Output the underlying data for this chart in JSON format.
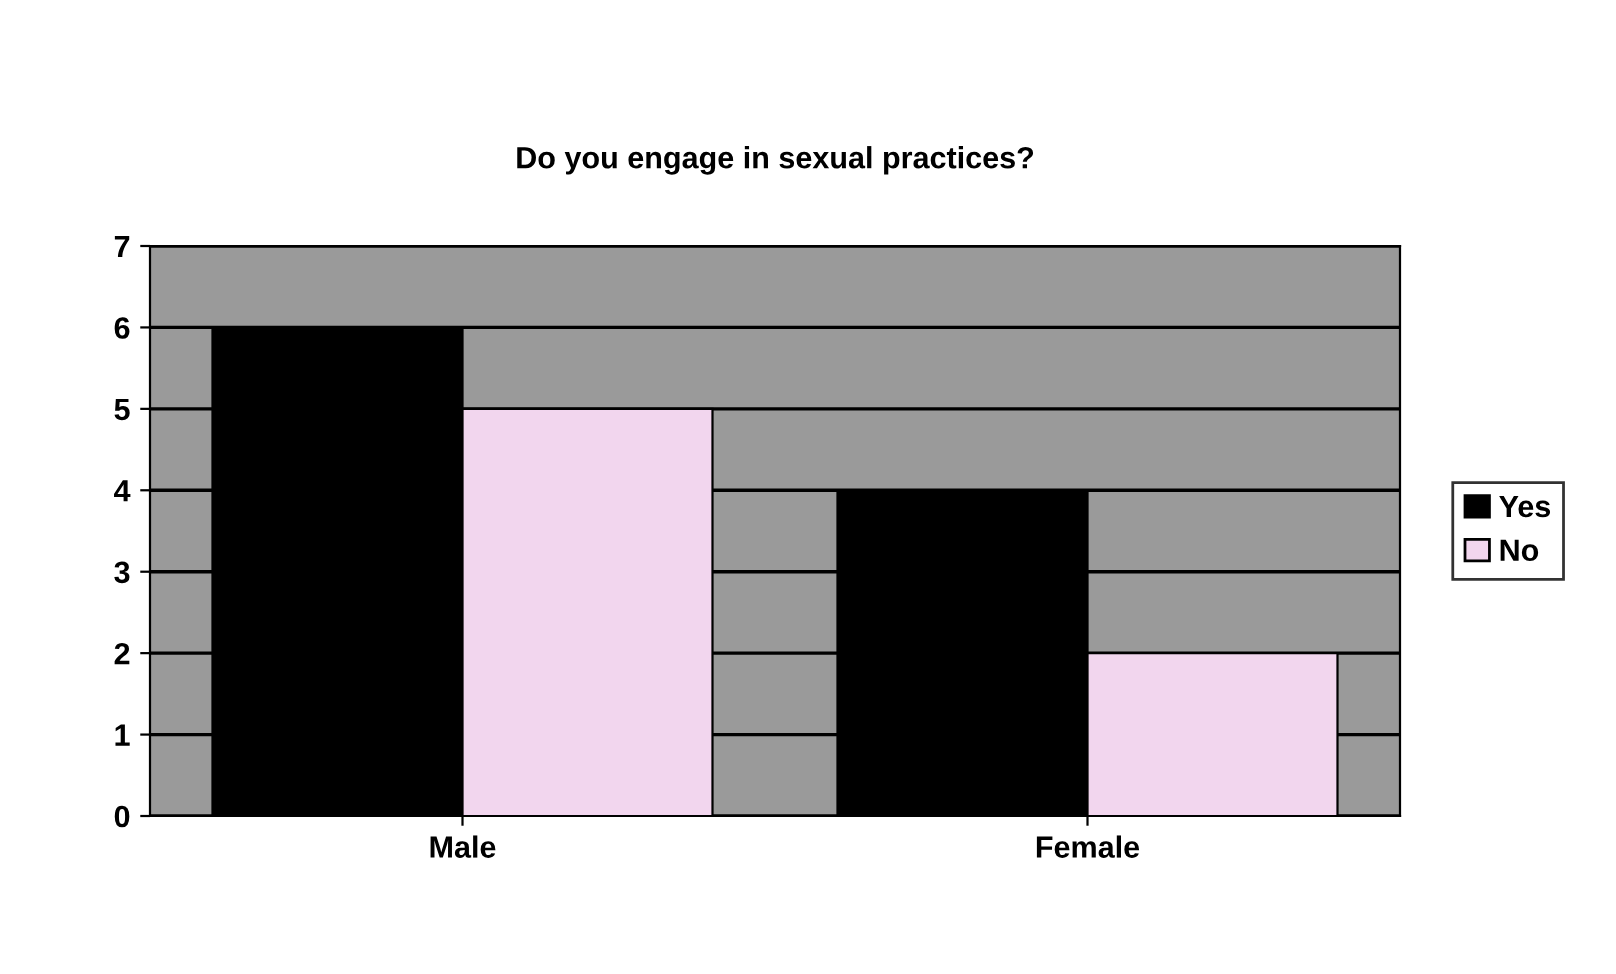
{
  "chart_data": {
    "type": "bar",
    "title": "Do you engage in sexual practices?",
    "categories": [
      "Male",
      "Female"
    ],
    "series": [
      {
        "name": "Yes",
        "color": "#000000",
        "values": [
          6,
          4
        ]
      },
      {
        "name": "No",
        "color": "#f2d6ee",
        "values": [
          5,
          2
        ]
      }
    ],
    "ylim": [
      0,
      7
    ],
    "yticks": [
      0,
      1,
      2,
      3,
      4,
      5,
      6,
      7
    ],
    "grid": "y",
    "legend": "right"
  }
}
